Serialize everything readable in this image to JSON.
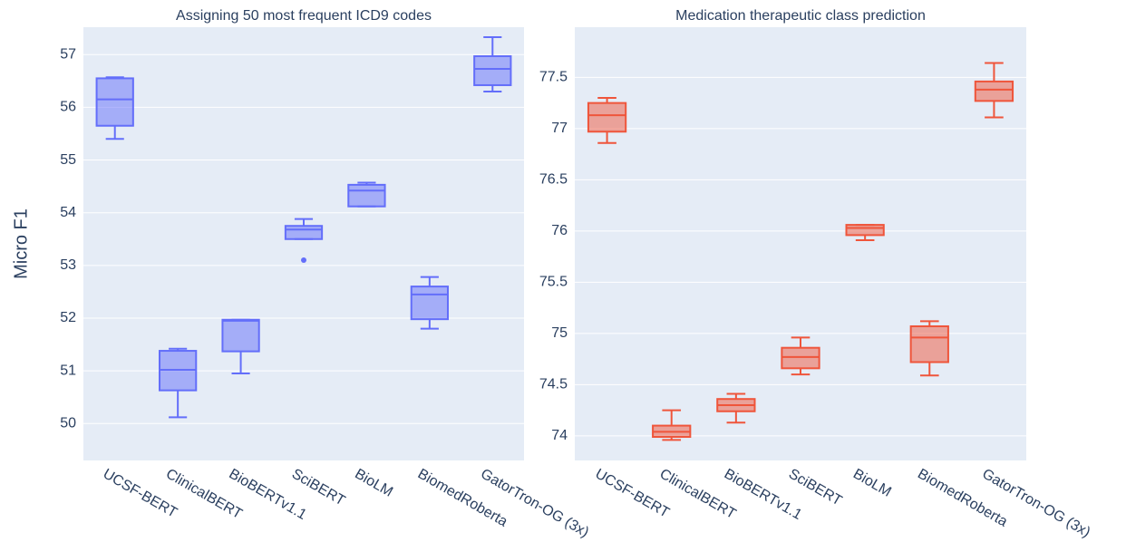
{
  "chart_data": [
    {
      "type": "box",
      "title": "Assigning 50 most frequent ICD9 codes",
      "ylabel": "Micro F1",
      "categories": [
        "UCSF-BERT",
        "ClinicalBERT",
        "BioBERTv1.1",
        "SciBERT",
        "BioLM",
        "BiomedRoberta",
        "GatorTron-OG (3x)"
      ],
      "series": [
        {
          "color": "#636efa",
          "boxes": [
            {
              "min": 55.4,
              "q1": 55.65,
              "median": 56.15,
              "q3": 56.55,
              "max": 56.57
            },
            {
              "min": 50.12,
              "q1": 50.63,
              "median": 51.02,
              "q3": 51.38,
              "max": 51.42
            },
            {
              "min": 50.95,
              "q1": 51.37,
              "median": 51.95,
              "q3": 51.97,
              "max": 51.97
            },
            {
              "min": 53.5,
              "q1": 53.5,
              "median": 53.68,
              "q3": 53.75,
              "max": 53.88,
              "outliers": [
                53.1
              ]
            },
            {
              "min": 54.12,
              "q1": 54.12,
              "median": 54.42,
              "q3": 54.53,
              "max": 54.57
            },
            {
              "min": 51.8,
              "q1": 51.98,
              "median": 52.45,
              "q3": 52.6,
              "max": 52.78
            },
            {
              "min": 56.3,
              "q1": 56.42,
              "median": 56.73,
              "q3": 56.97,
              "max": 57.33
            }
          ]
        }
      ],
      "ylim": [
        49.3,
        57.52
      ],
      "yticks": [
        50,
        51,
        52,
        53,
        54,
        55,
        56,
        57
      ],
      "grid": true
    },
    {
      "type": "box",
      "title": "Medication therapeutic class prediction",
      "categories": [
        "UCSF-BERT",
        "ClinicalBERT",
        "BioBERTv1.1",
        "SciBERT",
        "BioLM",
        "BiomedRoberta",
        "GatorTron-OG (3x)"
      ],
      "series": [
        {
          "color": "#ef553b",
          "boxes": [
            {
              "min": 76.86,
              "q1": 76.97,
              "median": 77.13,
              "q3": 77.25,
              "max": 77.3
            },
            {
              "min": 73.96,
              "q1": 73.99,
              "median": 74.04,
              "q3": 74.1,
              "max": 74.25
            },
            {
              "min": 74.13,
              "q1": 74.24,
              "median": 74.3,
              "q3": 74.36,
              "max": 74.41
            },
            {
              "min": 74.6,
              "q1": 74.66,
              "median": 74.77,
              "q3": 74.86,
              "max": 74.96
            },
            {
              "min": 75.91,
              "q1": 75.96,
              "median": 76.03,
              "q3": 76.06,
              "max": 76.06
            },
            {
              "min": 74.59,
              "q1": 74.72,
              "median": 74.96,
              "q3": 75.07,
              "max": 75.12
            },
            {
              "min": 77.11,
              "q1": 77.27,
              "median": 77.38,
              "q3": 77.46,
              "max": 77.64
            }
          ]
        }
      ],
      "ylim": [
        73.76,
        77.99
      ],
      "yticks": [
        74,
        74.5,
        75,
        75.5,
        76,
        76.5,
        77,
        77.5
      ],
      "grid": true
    }
  ]
}
